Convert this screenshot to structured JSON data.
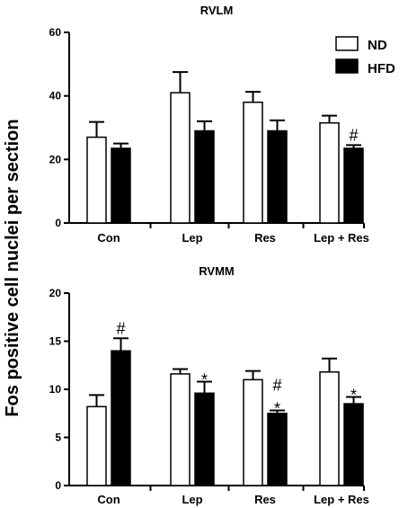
{
  "y_axis_label": "Fos positive cell nuclei per section",
  "legend": [
    {
      "label": "ND",
      "fill": "#ffffff"
    },
    {
      "label": "HFD",
      "fill": "#000000"
    }
  ],
  "chart_data": [
    {
      "type": "bar",
      "title": "RVLM",
      "categories": [
        "Con",
        "Lep",
        "Res",
        "Lep + Res"
      ],
      "ylim": [
        0,
        60
      ],
      "yticks": [
        0,
        20,
        40,
        60
      ],
      "ylabel": "Fos positive cell nuclei per section",
      "series": [
        {
          "name": "ND",
          "values": [
            27,
            41,
            38,
            31.5
          ],
          "errors": [
            4.8,
            6.5,
            3.3,
            2.3
          ]
        },
        {
          "name": "HFD",
          "values": [
            23.5,
            29,
            29,
            23.5
          ],
          "errors": [
            1.5,
            3,
            3.3,
            1
          ]
        }
      ],
      "annotations": [
        {
          "category": "Lep + Res",
          "series": "HFD",
          "text": "#"
        }
      ]
    },
    {
      "type": "bar",
      "title": "RVMM",
      "categories": [
        "Con",
        "Lep",
        "Res",
        "Lep + Res"
      ],
      "ylim": [
        0,
        20
      ],
      "yticks": [
        0,
        5,
        10,
        15,
        20
      ],
      "ylabel": "Fos positive cell nuclei per section",
      "series": [
        {
          "name": "ND",
          "values": [
            8.2,
            11.6,
            11,
            11.8
          ],
          "errors": [
            1.2,
            0.5,
            0.9,
            1.4
          ]
        },
        {
          "name": "HFD",
          "values": [
            14,
            9.6,
            7.5,
            8.5
          ],
          "errors": [
            1.3,
            1.2,
            0.3,
            0.7
          ]
        }
      ],
      "annotations": [
        {
          "category": "Con",
          "series": "HFD",
          "text": "#"
        },
        {
          "category": "Lep",
          "series": "HFD",
          "text": "*"
        },
        {
          "category": "Res",
          "series": "HFD",
          "text": "#"
        },
        {
          "category": "Res",
          "series": "HFD",
          "text": "*"
        },
        {
          "category": "Lep + Res",
          "series": "HFD",
          "text": "*"
        }
      ]
    }
  ]
}
